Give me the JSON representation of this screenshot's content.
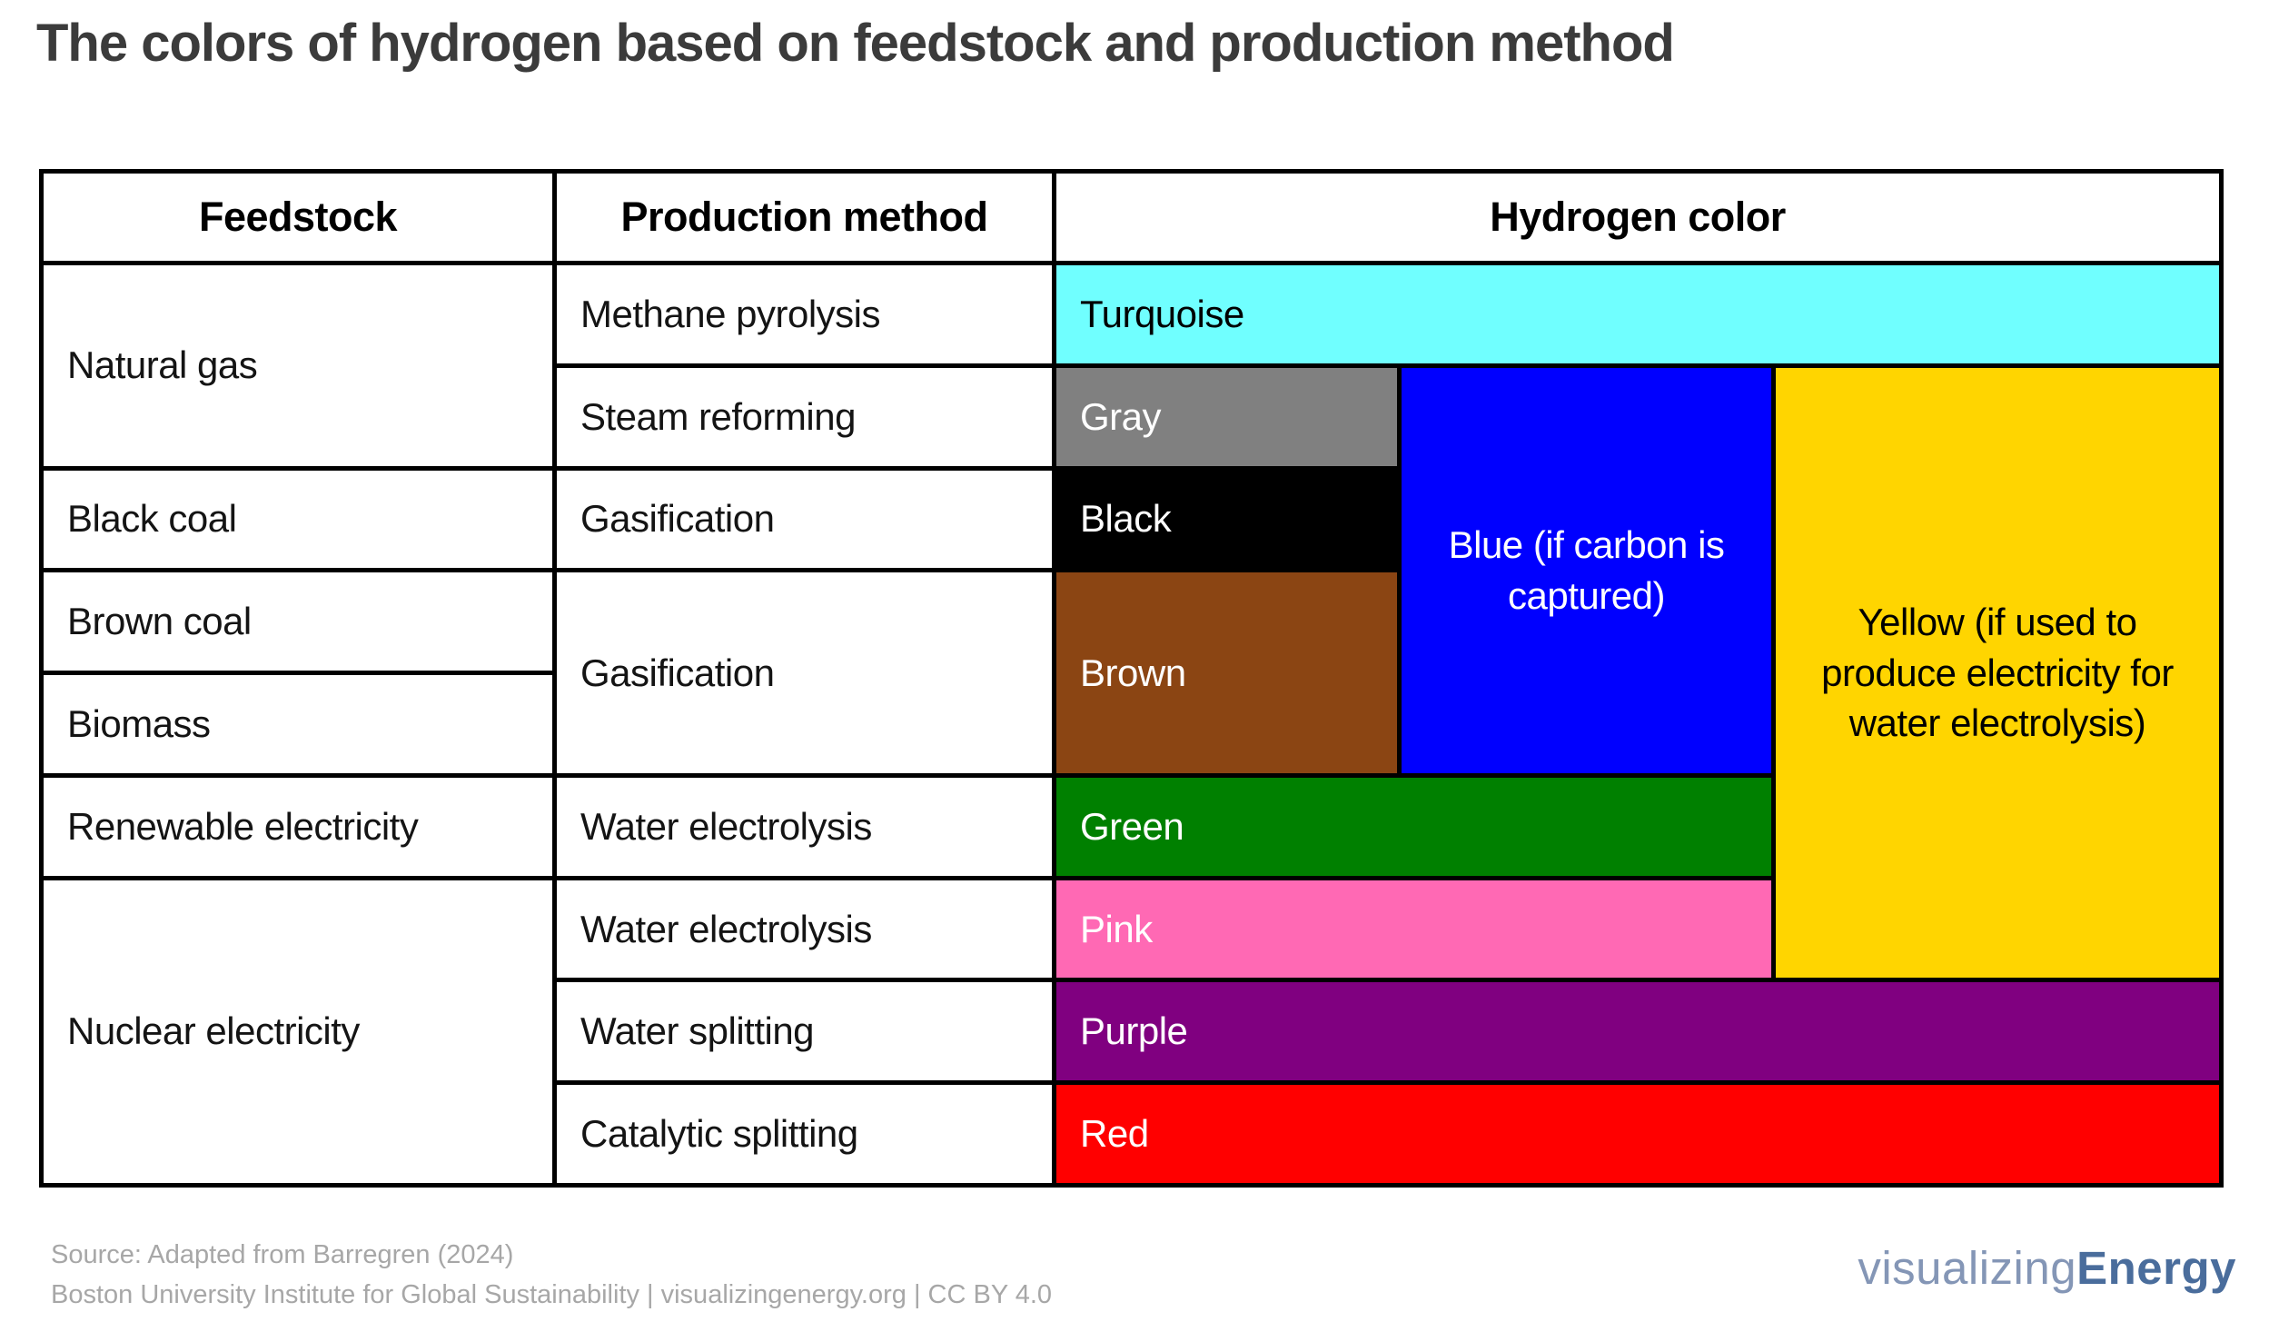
{
  "title": "The colors of hydrogen based on feedstock and production method",
  "table": {
    "headers": {
      "feedstock": "Feedstock",
      "production": "Production method",
      "hydrogen_color": "Hydrogen color"
    },
    "feedstock": {
      "natural_gas": "Natural gas",
      "black_coal": "Black coal",
      "brown_coal": "Brown coal",
      "biomass": "Biomass",
      "renewable_electricity": "Renewable electricity",
      "nuclear_electricity": "Nuclear electricity"
    },
    "production": {
      "methane_pyrolysis": "Methane pyrolysis",
      "steam_reforming": "Steam reforming",
      "gasification_black_coal": "Gasification",
      "gasification_brown_biomass": "Gasification",
      "water_electrolysis_renewable": "Water electrolysis",
      "water_electrolysis_nuclear": "Water electrolysis",
      "water_splitting": "Water splitting",
      "catalytic_splitting": "Catalytic splitting"
    },
    "colors": {
      "turquoise": {
        "label": "Turquoise",
        "hex": "#70FFFF",
        "text": "#000000"
      },
      "gray": {
        "label": "Gray",
        "hex": "#808080",
        "text": "#FFFFFF"
      },
      "black": {
        "label": "Black",
        "hex": "#000000",
        "text": "#FFFFFF"
      },
      "brown": {
        "label": "Brown",
        "hex": "#8B4513",
        "text": "#FFFFFF"
      },
      "blue": {
        "label": "Blue (if carbon is captured)",
        "hex": "#0000FF",
        "text": "#FFFFFF"
      },
      "yellow": {
        "label": "Yellow (if used to produce electricity for water electrolysis)",
        "hex": "#FFD500",
        "text": "#000000"
      },
      "green": {
        "label": "Green",
        "hex": "#008000",
        "text": "#FFFFFF"
      },
      "pink": {
        "label": "Pink",
        "hex": "#FF69B4",
        "text": "#FFFFFF"
      },
      "purple": {
        "label": "Purple",
        "hex": "#800080",
        "text": "#FFFFFF"
      },
      "red": {
        "label": "Red",
        "hex": "#FF0000",
        "text": "#FFFFFF"
      }
    }
  },
  "chart_data": {
    "type": "table",
    "title": "The colors of hydrogen based on feedstock and production method",
    "columns": [
      "Feedstock",
      "Production method",
      "Hydrogen color"
    ],
    "rows": [
      [
        "Natural gas",
        "Methane pyrolysis",
        "Turquoise"
      ],
      [
        "Natural gas",
        "Steam reforming",
        "Gray"
      ],
      [
        "Black coal",
        "Gasification",
        "Black"
      ],
      [
        "Brown coal",
        "Gasification",
        "Brown"
      ],
      [
        "Biomass",
        "Gasification",
        "Brown"
      ],
      [
        "Renewable electricity",
        "Water electrolysis",
        "Green"
      ],
      [
        "Nuclear electricity",
        "Water electrolysis",
        "Pink"
      ],
      [
        "Nuclear electricity",
        "Water splitting",
        "Purple"
      ],
      [
        "Nuclear electricity",
        "Catalytic splitting",
        "Red"
      ]
    ],
    "overlay_notes": [
      "Blue (if carbon is captured) spans the Steam reforming, Gasification (black coal) and Gasification (brown coal / biomass) rows",
      "Yellow (if used to produce electricity for water electrolysis) spans the Steam reforming through nuclear Water electrolysis rows"
    ]
  },
  "footer": {
    "source_line1": "Source: Adapted from Barregren (2024)",
    "source_line2": "Boston University Institute for Global Sustainability | visualizingenergy.org | CC BY 4.0",
    "logo_light": "visualizing",
    "logo_bold": "Energy"
  },
  "brand": {
    "logo_light_color": "#8496B6",
    "logo_bold_color": "#4A6D9C"
  }
}
